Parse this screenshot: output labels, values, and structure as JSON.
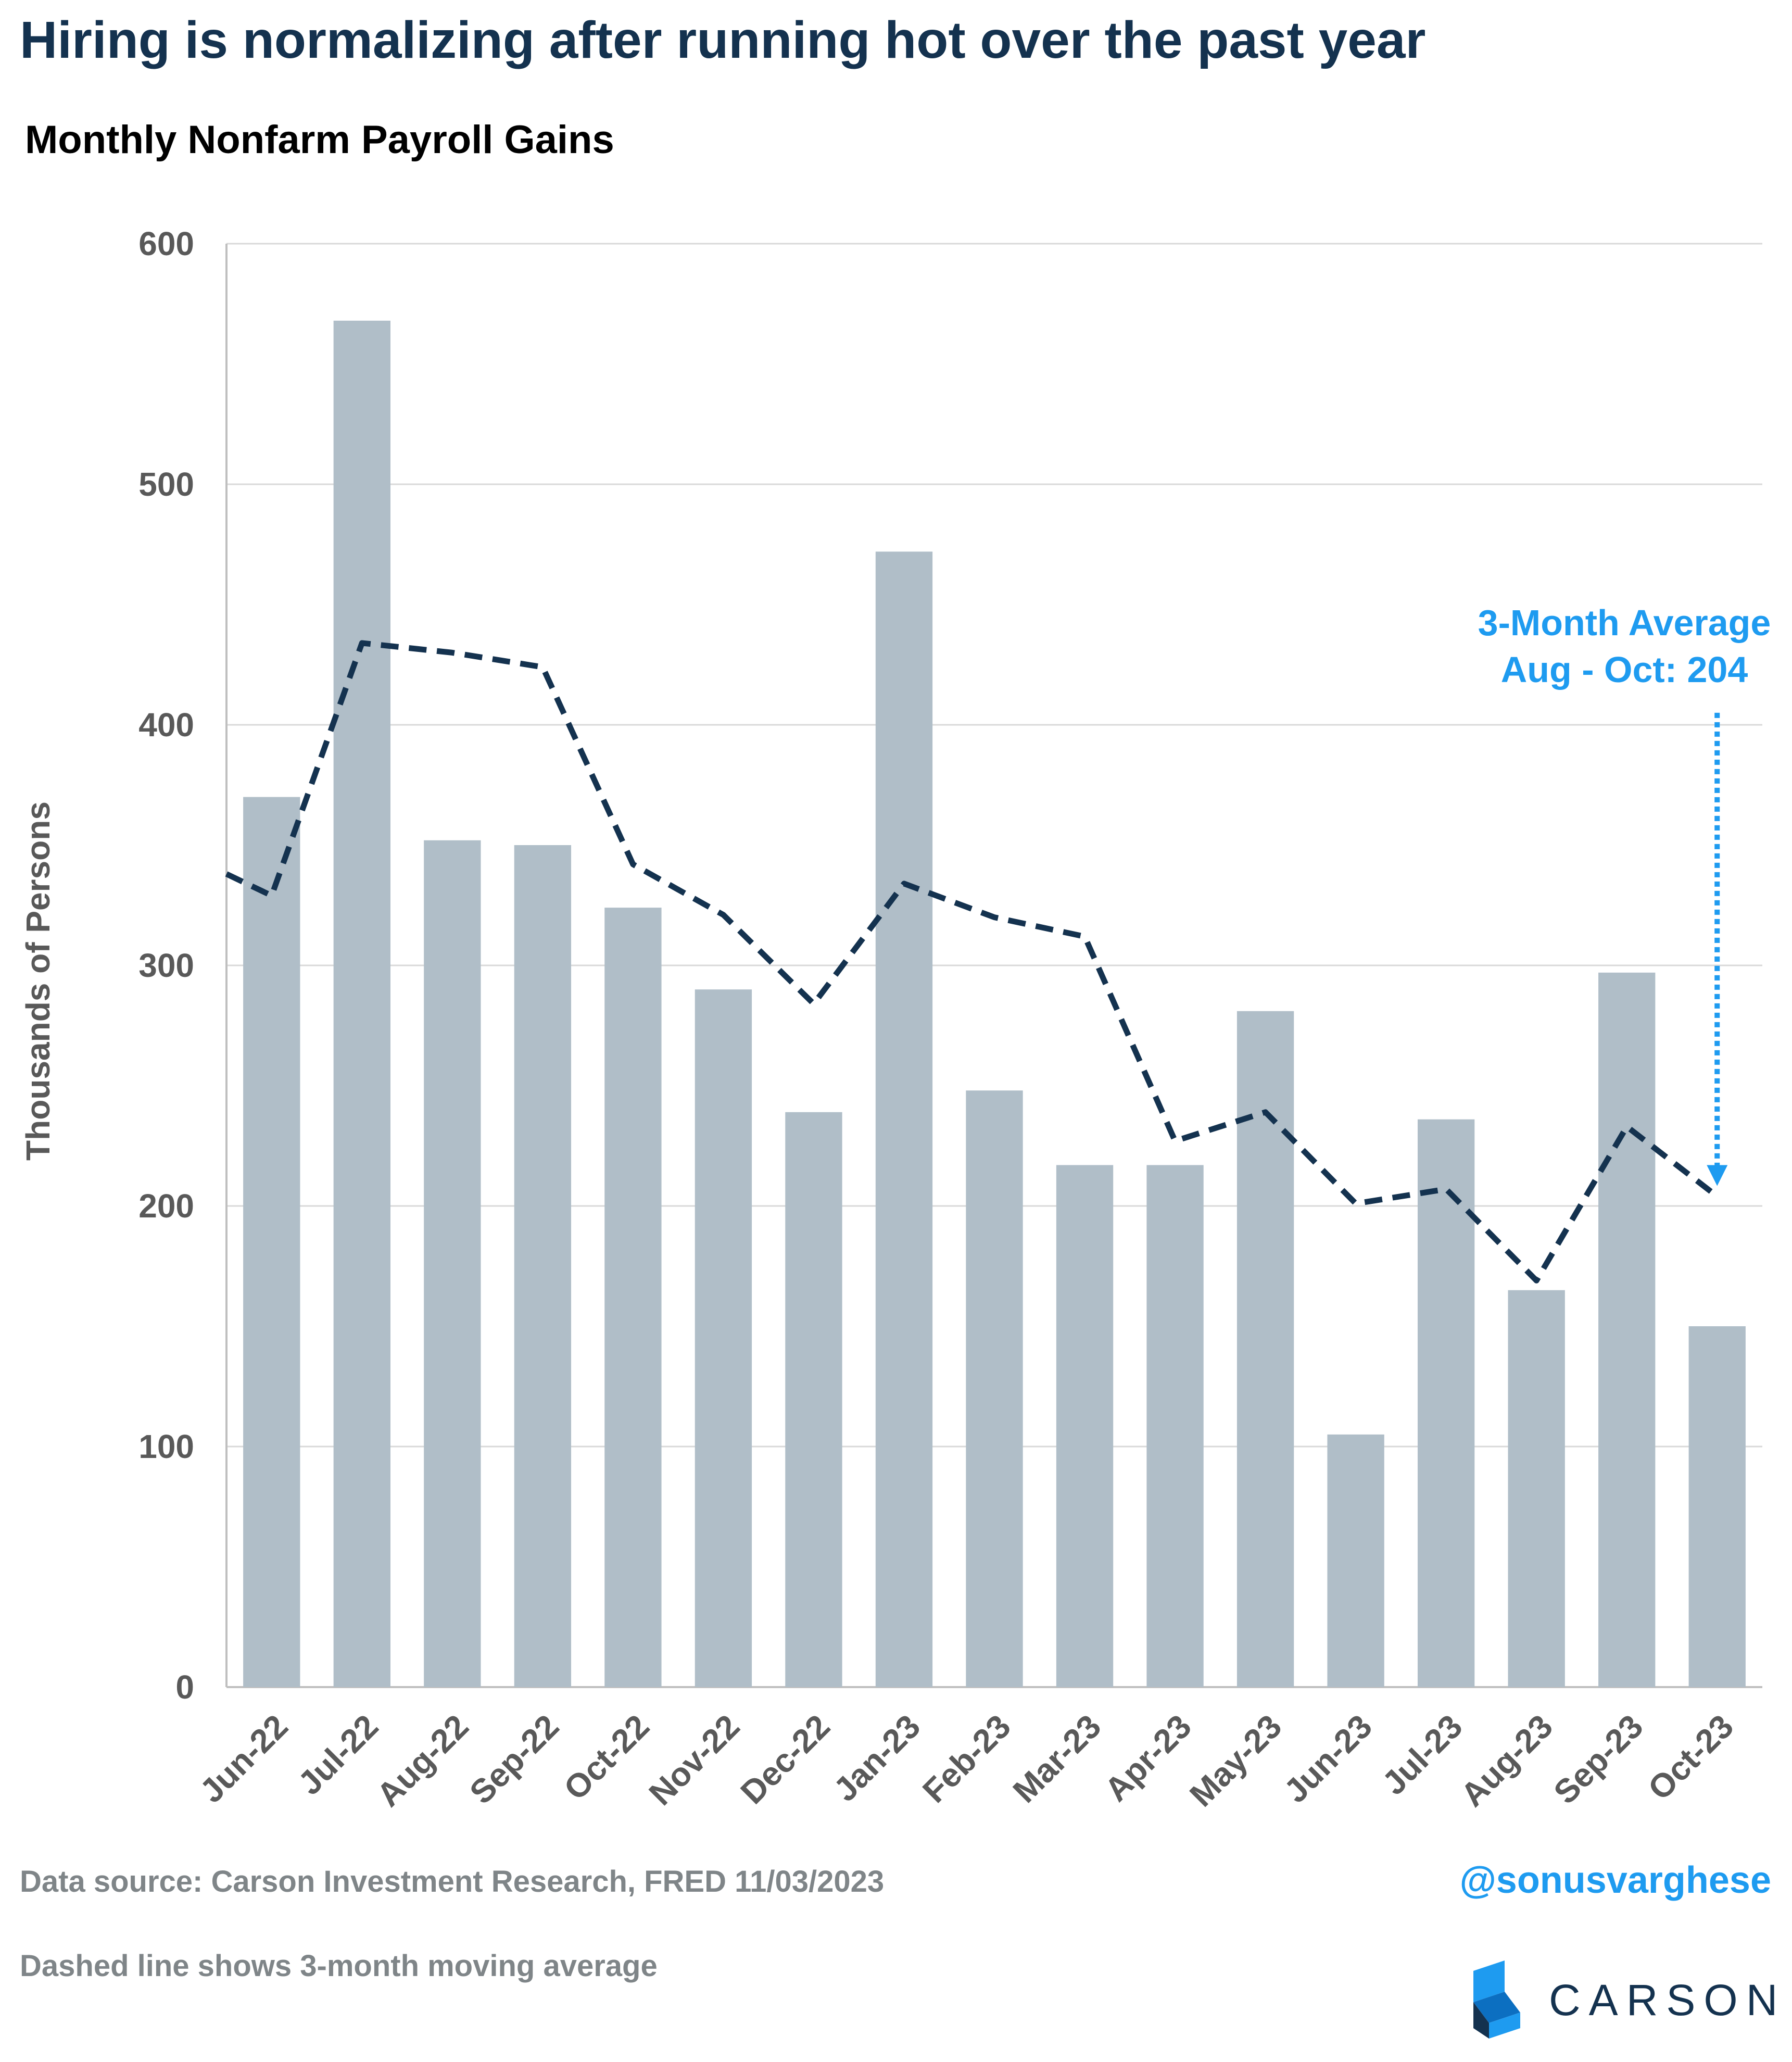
{
  "header": {
    "title": "Hiring is normalizing after running hot over the past year",
    "subtitle": "Monthly Nonfarm Payroll Gains"
  },
  "chart_data": {
    "type": "bar",
    "title": "Monthly Nonfarm Payroll Gains",
    "ylabel": "Thousands of Persons",
    "xlabel": "",
    "ylim": [
      0,
      600
    ],
    "yticks": [
      0,
      100,
      200,
      300,
      400,
      500,
      600
    ],
    "grid": true,
    "categories": [
      "Jun-22",
      "Jul-22",
      "Aug-22",
      "Sep-22",
      "Oct-22",
      "Nov-22",
      "Dec-22",
      "Jan-23",
      "Feb-23",
      "Mar-23",
      "Apr-23",
      "May-23",
      "Jun-23",
      "Jul-23",
      "Aug-23",
      "Sep-23",
      "Oct-23"
    ],
    "series": [
      {
        "type": "bar",
        "color": "#b0bec8",
        "values": [
          370,
          568,
          352,
          350,
          324,
          290,
          239,
          472,
          248,
          217,
          217,
          281,
          105,
          236,
          165,
          297,
          150
        ]
      },
      {
        "type": "line",
        "style": "dashed",
        "color": "#14324f",
        "lead_in_value": 338,
        "values": [
          329,
          434,
          430,
          424,
          342,
          321,
          284,
          334,
          320,
          312,
          227,
          239,
          201,
          207,
          169,
          233,
          204
        ]
      }
    ],
    "annotation": {
      "line1": "3-Month Average",
      "line2": "Aug - Oct: 204",
      "category": "Oct-23",
      "value": 204,
      "color": "#1e9bf0"
    }
  },
  "footer": {
    "source": "Data source: Carson Investment Research, FRED   11/03/2023",
    "note": "Dashed line shows 3-month moving average",
    "handle": "@sonusvarghese",
    "brand": "CARSON"
  }
}
